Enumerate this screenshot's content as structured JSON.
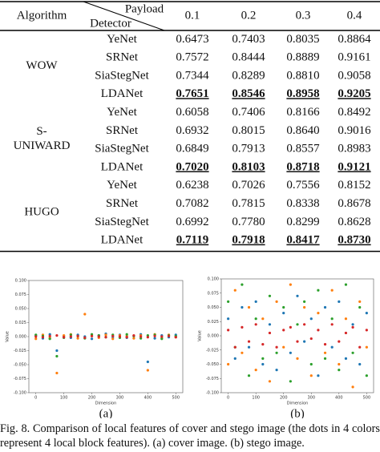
{
  "table": {
    "header": {
      "algorithm": "Algorithm",
      "payload": "Payload",
      "detector": "Detector",
      "payloads": [
        "0.1",
        "0.2",
        "0.3",
        "0.4"
      ]
    },
    "groups": [
      {
        "algorithm": [
          "WOW"
        ],
        "rows": [
          [
            "YeNet",
            "0.6473",
            "0.7403",
            "0.8035",
            "0.8864"
          ],
          [
            "SRNet",
            "0.7572",
            "0.8444",
            "0.8889",
            "0.9161"
          ],
          [
            "SiaStegNet",
            "0.7344",
            "0.8289",
            "0.8810",
            "0.9058"
          ],
          [
            "LDANet",
            "0.7651",
            "0.8546",
            "0.8958",
            "0.9205"
          ]
        ]
      },
      {
        "algorithm": [
          "S-",
          "UNIWARD"
        ],
        "rows": [
          [
            "YeNet",
            "0.6058",
            "0.7406",
            "0.8166",
            "0.8492"
          ],
          [
            "SRNet",
            "0.6932",
            "0.8015",
            "0.8640",
            "0.9016"
          ],
          [
            "SiaStegNet",
            "0.6849",
            "0.7913",
            "0.8557",
            "0.8983"
          ],
          [
            "LDANet",
            "0.7020",
            "0.8103",
            "0.8718",
            "0.9121"
          ]
        ]
      },
      {
        "algorithm": [
          "HUGO"
        ],
        "rows": [
          [
            "YeNet",
            "0.6238",
            "0.7026",
            "0.7556",
            "0.8152"
          ],
          [
            "SRNet",
            "0.7082",
            "0.7815",
            "0.8338",
            "0.8678"
          ],
          [
            "SiaStegNet",
            "0.6992",
            "0.7780",
            "0.8299",
            "0.8628"
          ],
          [
            "LDANet",
            "0.7119",
            "0.7918",
            "0.8417",
            "0.8730"
          ]
        ]
      }
    ]
  },
  "figures": [
    {
      "type": "scatter",
      "label": "(a)",
      "xlabel": "Dimension",
      "ylabel": "Value",
      "xlim": [
        -25,
        525
      ],
      "ylim": [
        -0.1,
        0.1
      ],
      "xticks": [
        0,
        100,
        200,
        300,
        400,
        500
      ],
      "yticks": [
        {
          "value": -0.1,
          "label": "-0.100"
        },
        {
          "value": -0.075,
          "label": "-0.075"
        },
        {
          "value": -0.05,
          "label": "-0.050"
        },
        {
          "value": -0.025,
          "label": "-0.025"
        },
        {
          "value": 0,
          "label": "0.000"
        },
        {
          "value": 0.025,
          "label": "0.025"
        },
        {
          "value": 0.05,
          "label": "0.050"
        },
        {
          "value": 0.075,
          "label": "0.075"
        },
        {
          "value": 0.1,
          "label": "0.100"
        }
      ],
      "x": [
        0,
        25,
        50,
        75,
        100,
        125,
        150,
        175,
        200,
        225,
        250,
        275,
        300,
        325,
        350,
        375,
        400,
        425,
        450,
        475,
        500
      ],
      "series": [
        {
          "color": "#1f77b4",
          "values": [
            0.002,
            -0.003,
            0.004,
            -0.025,
            0.001,
            -0.002,
            0.003,
            0.0,
            -0.004,
            0.002,
            0.005,
            -0.001,
            0.003,
            -0.002,
            0.001,
            0.004,
            -0.045,
            -0.003,
            0.002,
            -0.001,
            0.003
          ]
        },
        {
          "color": "#ff7f0e",
          "values": [
            -0.004,
            0.003,
            -0.002,
            -0.065,
            0.002,
            0.004,
            -0.003,
            0.04,
            0.001,
            -0.002,
            0.003,
            -0.004,
            0.002,
            0.001,
            -0.003,
            0.002,
            -0.06,
            0.004,
            -0.002,
            0.003,
            -0.001
          ]
        },
        {
          "color": "#2ca02c",
          "values": [
            0.003,
            0.001,
            -0.004,
            -0.035,
            -0.002,
            0.003,
            0.001,
            -0.003,
            0.004,
            0.002,
            -0.001,
            0.003,
            -0.002,
            0.004,
            0.001,
            -0.003,
            0.002,
            0.003,
            -0.004,
            0.002,
            0.001
          ]
        },
        {
          "color": "#d62728",
          "values": [
            0.0,
            -0.001,
            0.001,
            0.002,
            -0.001,
            0.0,
            0.001,
            -0.002,
            0.001,
            0.0,
            -0.001,
            0.001,
            0.0,
            -0.001,
            0.002,
            0.0,
            -0.001,
            0.001,
            0.0,
            0.001,
            -0.001
          ]
        }
      ]
    },
    {
      "type": "scatter",
      "label": "(b)",
      "xlabel": "Dimension",
      "ylabel": "Value",
      "xlim": [
        -25,
        525
      ],
      "ylim": [
        -0.1,
        0.1
      ],
      "xticks": [
        0,
        100,
        200,
        300,
        400,
        500
      ],
      "yticks": [
        {
          "value": -0.1,
          "label": "-0.100"
        },
        {
          "value": -0.075,
          "label": "-0.075"
        },
        {
          "value": -0.05,
          "label": "-0.050"
        },
        {
          "value": -0.025,
          "label": "-0.025"
        },
        {
          "value": 0,
          "label": "0.000"
        },
        {
          "value": 0.025,
          "label": "0.025"
        },
        {
          "value": 0.05,
          "label": "0.050"
        },
        {
          "value": 0.075,
          "label": "0.075"
        },
        {
          "value": 0.1,
          "label": "0.100"
        }
      ],
      "x": [
        0,
        25,
        50,
        75,
        100,
        125,
        150,
        175,
        200,
        225,
        250,
        275,
        300,
        325,
        350,
        375,
        400,
        425,
        450,
        475,
        500
      ],
      "series": [
        {
          "color": "#1f77b4",
          "values": [
            0.03,
            -0.04,
            0.05,
            -0.02,
            0.06,
            -0.05,
            0.02,
            -0.06,
            0.04,
            -0.03,
            0.07,
            -0.01,
            0.03,
            -0.07,
            0.05,
            -0.02,
            0.06,
            -0.04,
            0.02,
            -0.05,
            0.04
          ]
        },
        {
          "color": "#ff7f0e",
          "values": [
            -0.05,
            0.08,
            -0.03,
            0.05,
            -0.06,
            0.03,
            -0.08,
            0.06,
            -0.02,
            0.09,
            -0.04,
            0.05,
            -0.07,
            0.04,
            -0.03,
            0.08,
            -0.05,
            0.03,
            -0.09,
            0.06,
            -0.02
          ]
        },
        {
          "color": "#2ca02c",
          "values": [
            0.06,
            -0.02,
            0.09,
            -0.07,
            0.03,
            -0.04,
            0.07,
            -0.03,
            0.05,
            -0.08,
            0.02,
            0.06,
            -0.05,
            0.08,
            -0.04,
            0.03,
            -0.06,
            0.09,
            -0.03,
            0.05,
            -0.07
          ]
        },
        {
          "color": "#d62728",
          "values": [
            0.01,
            -0.02,
            0.015,
            -0.01,
            0.02,
            -0.015,
            0.005,
            -0.02,
            0.01,
            0.015,
            -0.01,
            0.02,
            -0.005,
            0.01,
            -0.015,
            0.02,
            -0.01,
            0.005,
            0.015,
            -0.02,
            0.01
          ]
        }
      ]
    }
  ],
  "caption": "Fig. 8.  Comparison of local features of cover and stego image (the dots in 4 colors represent 4 local block features). (a) cover image. (b) stego image."
}
